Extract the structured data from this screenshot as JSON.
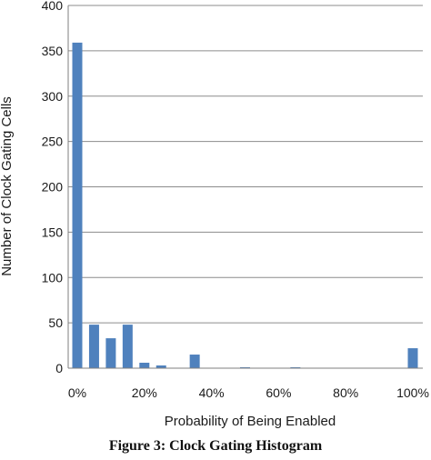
{
  "figure_caption": "Figure 3: Clock Gating Histogram",
  "chart_data": {
    "type": "bar",
    "title": "",
    "xlabel": "Probability of Being Enabled",
    "ylabel": "Number of Clock Gating Cells",
    "x": [
      0,
      5,
      10,
      15,
      20,
      25,
      30,
      35,
      40,
      45,
      50,
      55,
      60,
      65,
      70,
      75,
      80,
      85,
      90,
      95,
      100
    ],
    "values": [
      359,
      48,
      33,
      48,
      6,
      3,
      0,
      15,
      0,
      0,
      1,
      0,
      0,
      1,
      0,
      0,
      0,
      0,
      0,
      0,
      22
    ],
    "x_unit": "%",
    "ylim": [
      0,
      400
    ],
    "yticks": [
      0,
      50,
      100,
      150,
      200,
      250,
      300,
      350,
      400
    ],
    "xticks": [
      0,
      20,
      40,
      60,
      80,
      100
    ],
    "xtick_labels": [
      "0%",
      "20%",
      "40%",
      "60%",
      "80%",
      "100%"
    ],
    "grid": "horizontal",
    "bar_color": "#4f81bd",
    "grid_color": "#8c8c8c",
    "legend": "none"
  }
}
